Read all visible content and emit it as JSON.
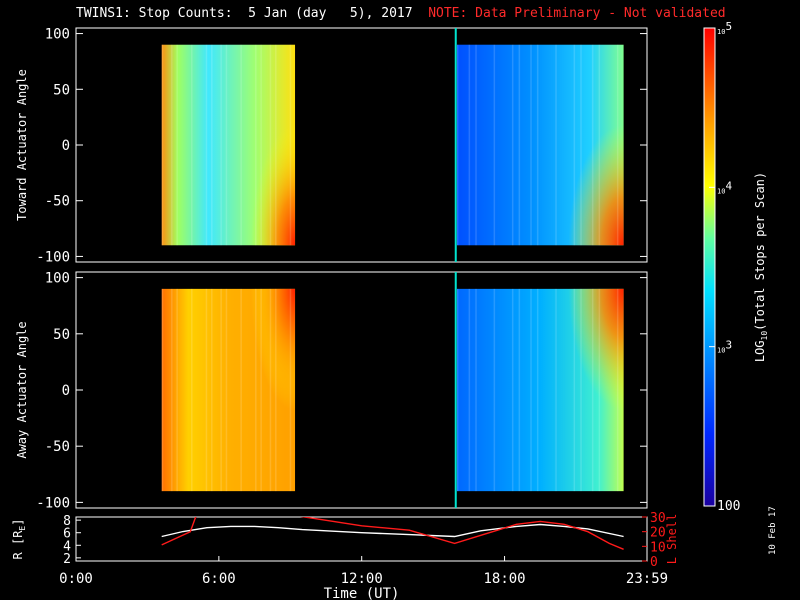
{
  "title_main": "TWINS1: Stop Counts:  5 Jan (day   5), 2017",
  "title_note": "NOTE: Data Preliminary - Not validated",
  "stamp": "10 Feb 17",
  "colors": {
    "frame": "#ffffff",
    "marker": "#00e5d0",
    "lshell": "#ff1a1a",
    "radius": "#ffffff"
  },
  "chart_data": [
    {
      "type": "heatmap",
      "ylabel": "Toward Actuator Angle",
      "ylim": [
        -105,
        105
      ],
      "yticks": [
        100,
        50,
        0,
        -50,
        -100
      ],
      "xlim_hours": [
        0,
        23.983
      ],
      "blocks": [
        {
          "start_hour": 3.6,
          "end_hour": 9.2,
          "angle_range": [
            -90,
            90
          ]
        },
        {
          "start_hour": 16.0,
          "end_hour": 23.0,
          "angle_range": [
            -90,
            90
          ]
        }
      ],
      "marker_hour": 15.95
    },
    {
      "type": "heatmap",
      "ylabel": "Away Actuator Angle",
      "ylim": [
        -105,
        105
      ],
      "yticks": [
        100,
        50,
        0,
        -50,
        -100
      ],
      "xlim_hours": [
        0,
        23.983
      ],
      "blocks": [
        {
          "start_hour": 3.6,
          "end_hour": 9.2,
          "angle_range": [
            -90,
            90
          ]
        },
        {
          "start_hour": 16.0,
          "end_hour": 23.0,
          "angle_range": [
            -90,
            90
          ]
        }
      ],
      "marker_hour": 15.95
    },
    {
      "type": "line",
      "ylabel_left_main": "R [R",
      "ylabel_left_sub": "E",
      "ylabel_left_end": "]",
      "ylabel_right": "L Shell",
      "ylim_left": [
        1.5,
        8.5
      ],
      "yticks_left": [
        8,
        6,
        4,
        2
      ],
      "ylim_right": [
        0,
        30
      ],
      "yticks_right": [
        30,
        20,
        10,
        0
      ],
      "xticks": [
        {
          "hour": 0,
          "label": "0:00"
        },
        {
          "hour": 6,
          "label": "6:00"
        },
        {
          "hour": 12,
          "label": "12:00"
        },
        {
          "hour": 18,
          "label": "18:00"
        },
        {
          "hour": 23.983,
          "label": "23:59"
        }
      ],
      "xlabel": "Time (UT)",
      "series": [
        {
          "axis": "left",
          "x": [
            3.6,
            4.5,
            5.5,
            6.5,
            7.5,
            8.5,
            9.5,
            12,
            14,
            15.9,
            17,
            18.5,
            19.5,
            20.5,
            21.5,
            23
          ],
          "y": [
            5.4,
            6.2,
            6.8,
            7.0,
            7.0,
            6.8,
            6.5,
            6.0,
            5.7,
            5.4,
            6.3,
            7.0,
            7.3,
            7.0,
            6.6,
            5.4
          ]
        },
        {
          "axis": "right",
          "x": [
            3.6,
            4.8,
            5.05,
            9.2,
            12,
            14,
            15.9,
            17.5,
            18.5,
            19.5,
            20.5,
            21.5,
            22.4,
            23
          ],
          "y": [
            11,
            20,
            31,
            31,
            24,
            21,
            12,
            20,
            25,
            27,
            25,
            20,
            12,
            8
          ]
        }
      ]
    }
  ],
  "colorbar": {
    "label_main": "LOG",
    "label_sub": "10",
    "label_end": "(Total Stops per Scan)",
    "scale": "log",
    "range": [
      100,
      100000
    ],
    "ticks": [
      {
        "value": 100000,
        "base": "10",
        "exp": "5"
      },
      {
        "value": 10000,
        "base": "10",
        "exp": "4"
      },
      {
        "value": 1000,
        "base": "10",
        "exp": "3"
      }
    ],
    "bottom_label": "100"
  }
}
